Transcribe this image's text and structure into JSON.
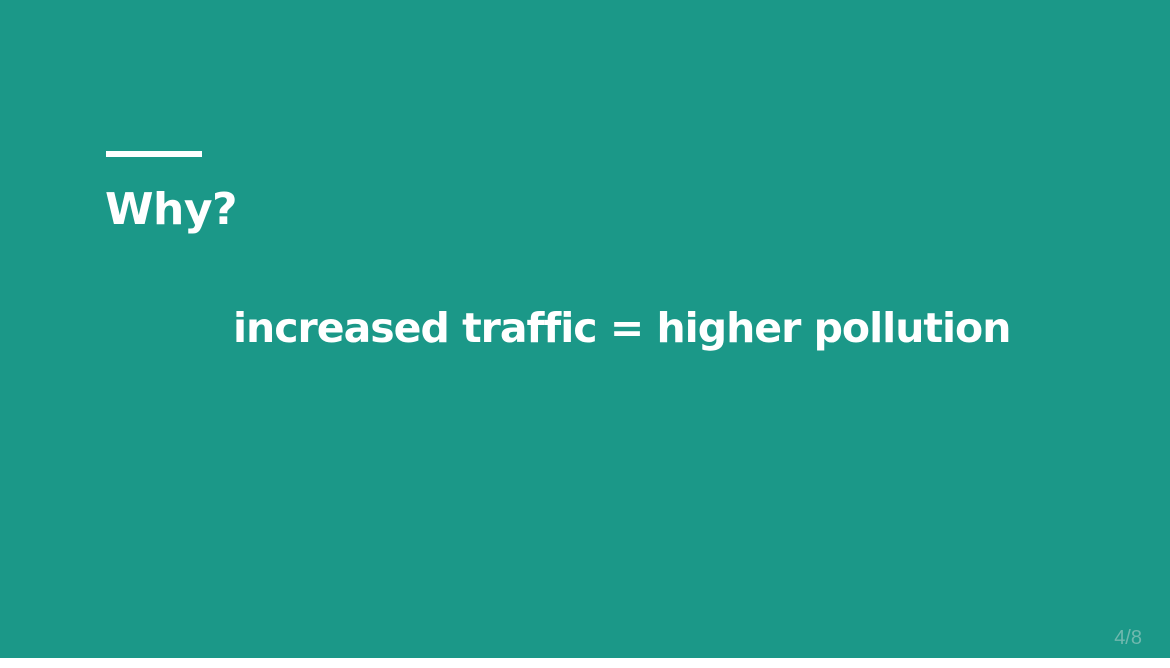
{
  "slide": {
    "title": "Why?",
    "body": "increased traffic = higher pollution",
    "page_number": "4/8",
    "colors": {
      "background": "#1b9888",
      "text": "#ffffff",
      "page_number": "#6fb8ae"
    }
  }
}
